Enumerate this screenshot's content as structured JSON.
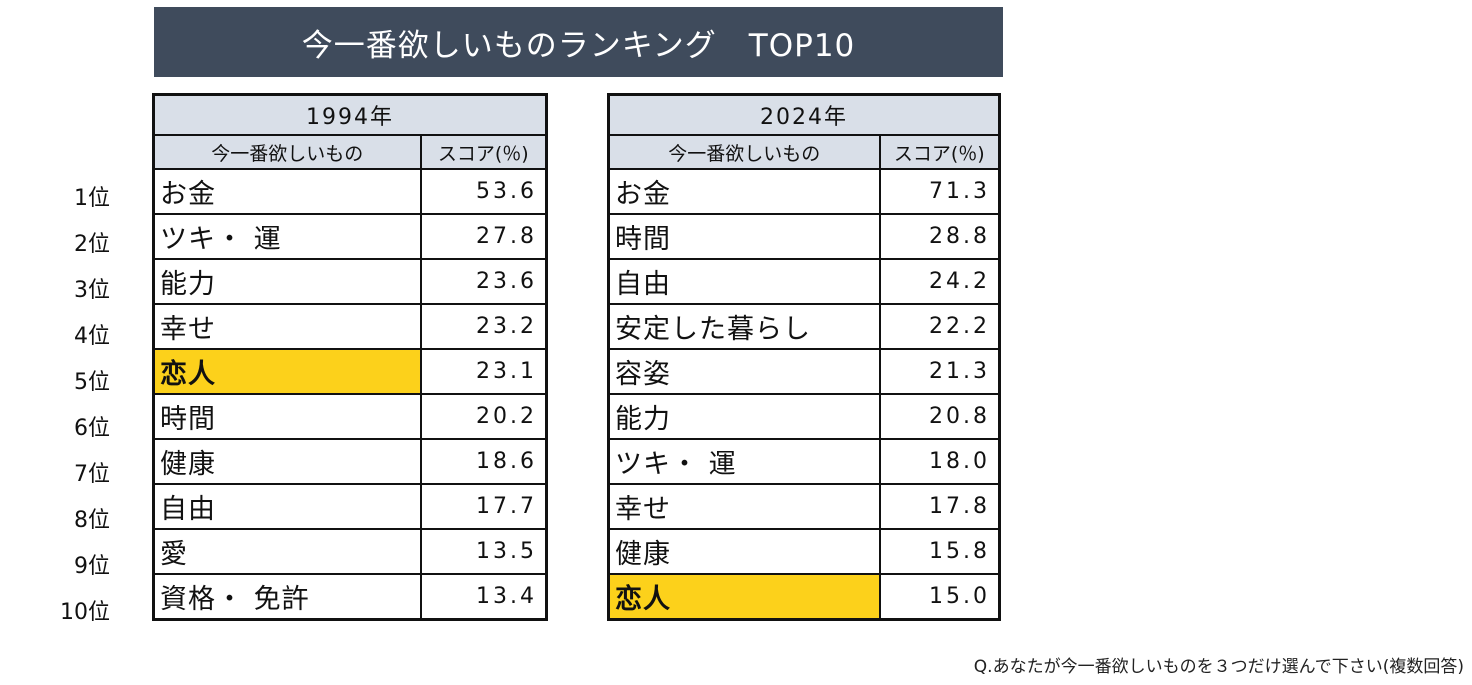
{
  "title": "今一番欲しいものランキング　TOP10",
  "ranks": [
    "1位",
    "2位",
    "3位",
    "4位",
    "5位",
    "6位",
    "7位",
    "8位",
    "9位",
    "10位"
  ],
  "tables": [
    {
      "year": "1994年",
      "col_item": "今一番欲しいもの",
      "col_score": "スコア(％)",
      "rows": [
        {
          "item": "お金",
          "score": "53.6"
        },
        {
          "item": "ツキ・ 運",
          "score": "27.8"
        },
        {
          "item": "能力",
          "score": "23.6"
        },
        {
          "item": "幸せ",
          "score": "23.2"
        },
        {
          "item": "恋人",
          "score": "23.1"
        },
        {
          "item": "時間",
          "score": "20.2"
        },
        {
          "item": "健康",
          "score": "18.6"
        },
        {
          "item": "自由",
          "score": "17.7"
        },
        {
          "item": "愛",
          "score": "13.5"
        },
        {
          "item": "資格・ 免許",
          "score": "13.4"
        }
      ]
    },
    {
      "year": "2024年",
      "col_item": "今一番欲しいもの",
      "col_score": "スコア(％)",
      "rows": [
        {
          "item": "お金",
          "score": "71.3"
        },
        {
          "item": "時間",
          "score": "28.8"
        },
        {
          "item": "自由",
          "score": "24.2"
        },
        {
          "item": "安定した暮らし",
          "score": "22.2"
        },
        {
          "item": "容姿",
          "score": "21.3"
        },
        {
          "item": "能力",
          "score": "20.8"
        },
        {
          "item": "ツキ・ 運",
          "score": "18.0"
        },
        {
          "item": "幸せ",
          "score": "17.8"
        },
        {
          "item": "健康",
          "score": "15.8"
        },
        {
          "item": "恋人",
          "score": "15.0"
        }
      ]
    }
  ],
  "highlight_color": "#fcd11b",
  "header_color": "#3f4b5c",
  "footnote": "Q.あなたが今一番欲しいものを３つだけ選んで下さい(複数回答)"
}
